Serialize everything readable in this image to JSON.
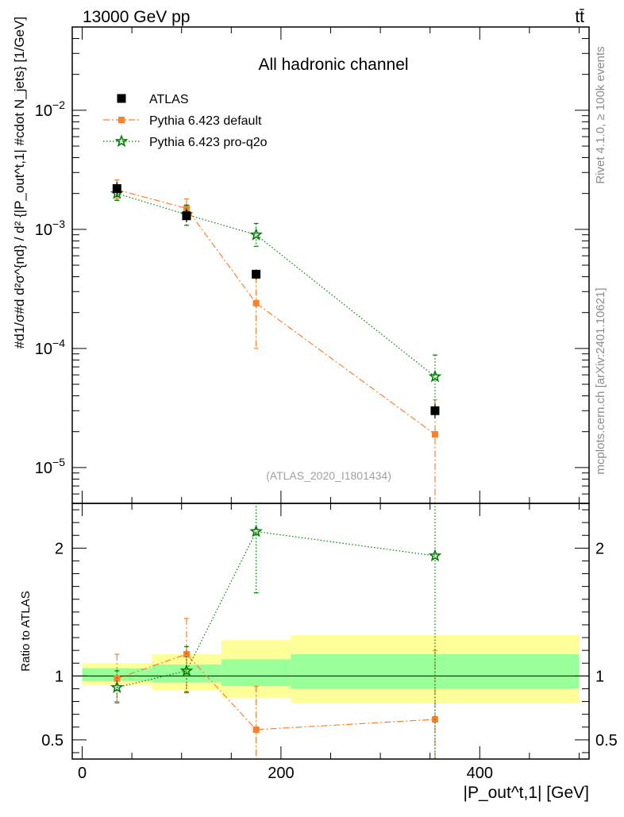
{
  "header": {
    "energy_label": "13000 GeV pp",
    "process_label": "tt̄",
    "side_label_rivet": "Rivet 4.1.0, ≥ 100k events",
    "side_label_source": "mcplots.cern.ch [arXiv:2401.10621]"
  },
  "chart_data": {
    "type": "scatter",
    "title": "All hadronic channel",
    "analysis_id": "(ATLAS_2020_I1801434)",
    "xlabel": "|P_out^t,1| [GeV]",
    "ylabel_main": "#d1/σ#d d²σ^{nd} / d² {|P_out^t,1| #cdot N_jets} [1/GeV]",
    "ylabel_ratio": "Ratio to ATLAS",
    "xlim": [
      -10,
      510
    ],
    "ylim_main": [
      5e-06,
      0.05
    ],
    "ylim_main_scale": "log",
    "ylim_ratio": [
      0.35,
      2.35
    ],
    "legend_position": "top-left",
    "x_ticks": [
      0,
      200,
      400
    ],
    "x_tick_labels": [
      "0",
      "200",
      "400"
    ],
    "y_ticks_main": [
      {
        "base": "10",
        "exp": "−2",
        "value": 0.01
      },
      {
        "base": "10",
        "exp": "−3",
        "value": 0.001
      },
      {
        "base": "10",
        "exp": "−4",
        "value": 0.0001
      },
      {
        "base": "10",
        "exp": "−5",
        "value": 1e-05
      }
    ],
    "y_ticks_ratio": [
      {
        "label": "0.5",
        "value": 0.5
      },
      {
        "label": "1",
        "value": 1
      },
      {
        "label": "2",
        "value": 2
      }
    ],
    "bins": [
      [
        0,
        70
      ],
      [
        70,
        140
      ],
      [
        140,
        210
      ],
      [
        210,
        500
      ]
    ],
    "band_inner": [
      [
        0.96,
        1.06
      ],
      [
        0.95,
        1.09
      ],
      [
        0.92,
        1.13
      ],
      [
        0.9,
        1.17
      ]
    ],
    "band_outer": [
      [
        0.93,
        1.1
      ],
      [
        0.89,
        1.17
      ],
      [
        0.83,
        1.28
      ],
      [
        0.79,
        1.32
      ]
    ],
    "series": [
      {
        "name": "ATLAS",
        "marker": "square",
        "color": "#000000",
        "x": [
          35,
          105,
          175,
          355
        ],
        "y": [
          0.0022,
          0.0013,
          0.00042,
          3e-05
        ],
        "yerr_low": [
          0.0019,
          0.00115,
          0.00038,
          2.6e-05
        ],
        "yerr_high": [
          0.0025,
          0.00145,
          0.00046,
          3.4e-05
        ]
      },
      {
        "name": "Pythia 6.423 default",
        "marker": "square",
        "color": "#ff7f2a",
        "linestyle": "dashdot",
        "x": [
          35,
          105,
          175,
          355
        ],
        "y": [
          0.00215,
          0.0015,
          0.00024,
          1.9e-05
        ],
        "yerr_low": [
          0.0018,
          0.00125,
          0.0001,
          1e-06
        ],
        "yerr_high": [
          0.0026,
          0.0018,
          0.0004,
          3.7e-05
        ],
        "ratio": [
          0.98,
          1.17,
          0.58,
          0.66
        ],
        "ratio_err_low": [
          0.8,
          0.88,
          0.3,
          0.3
        ],
        "ratio_err_high": [
          1.17,
          1.45,
          0.92,
          1.2
        ]
      },
      {
        "name": "Pythia 6.423 pro-q2o",
        "marker": "star",
        "color": "#007f00",
        "linestyle": "dotted",
        "x": [
          35,
          105,
          175,
          355
        ],
        "y": [
          0.002,
          0.00133,
          0.0009,
          5.8e-05
        ],
        "yerr_low": [
          0.00175,
          0.00108,
          0.00072,
          3e-05
        ],
        "yerr_high": [
          0.00228,
          0.0016,
          0.00112,
          8.8e-05
        ],
        "ratio": [
          0.91,
          1.04,
          2.13,
          1.94
        ],
        "ratio_err_low": [
          0.79,
          0.87,
          1.65,
          0.3
        ],
        "ratio_err_high": [
          1.04,
          1.23,
          2.8,
          2.9
        ]
      }
    ]
  }
}
